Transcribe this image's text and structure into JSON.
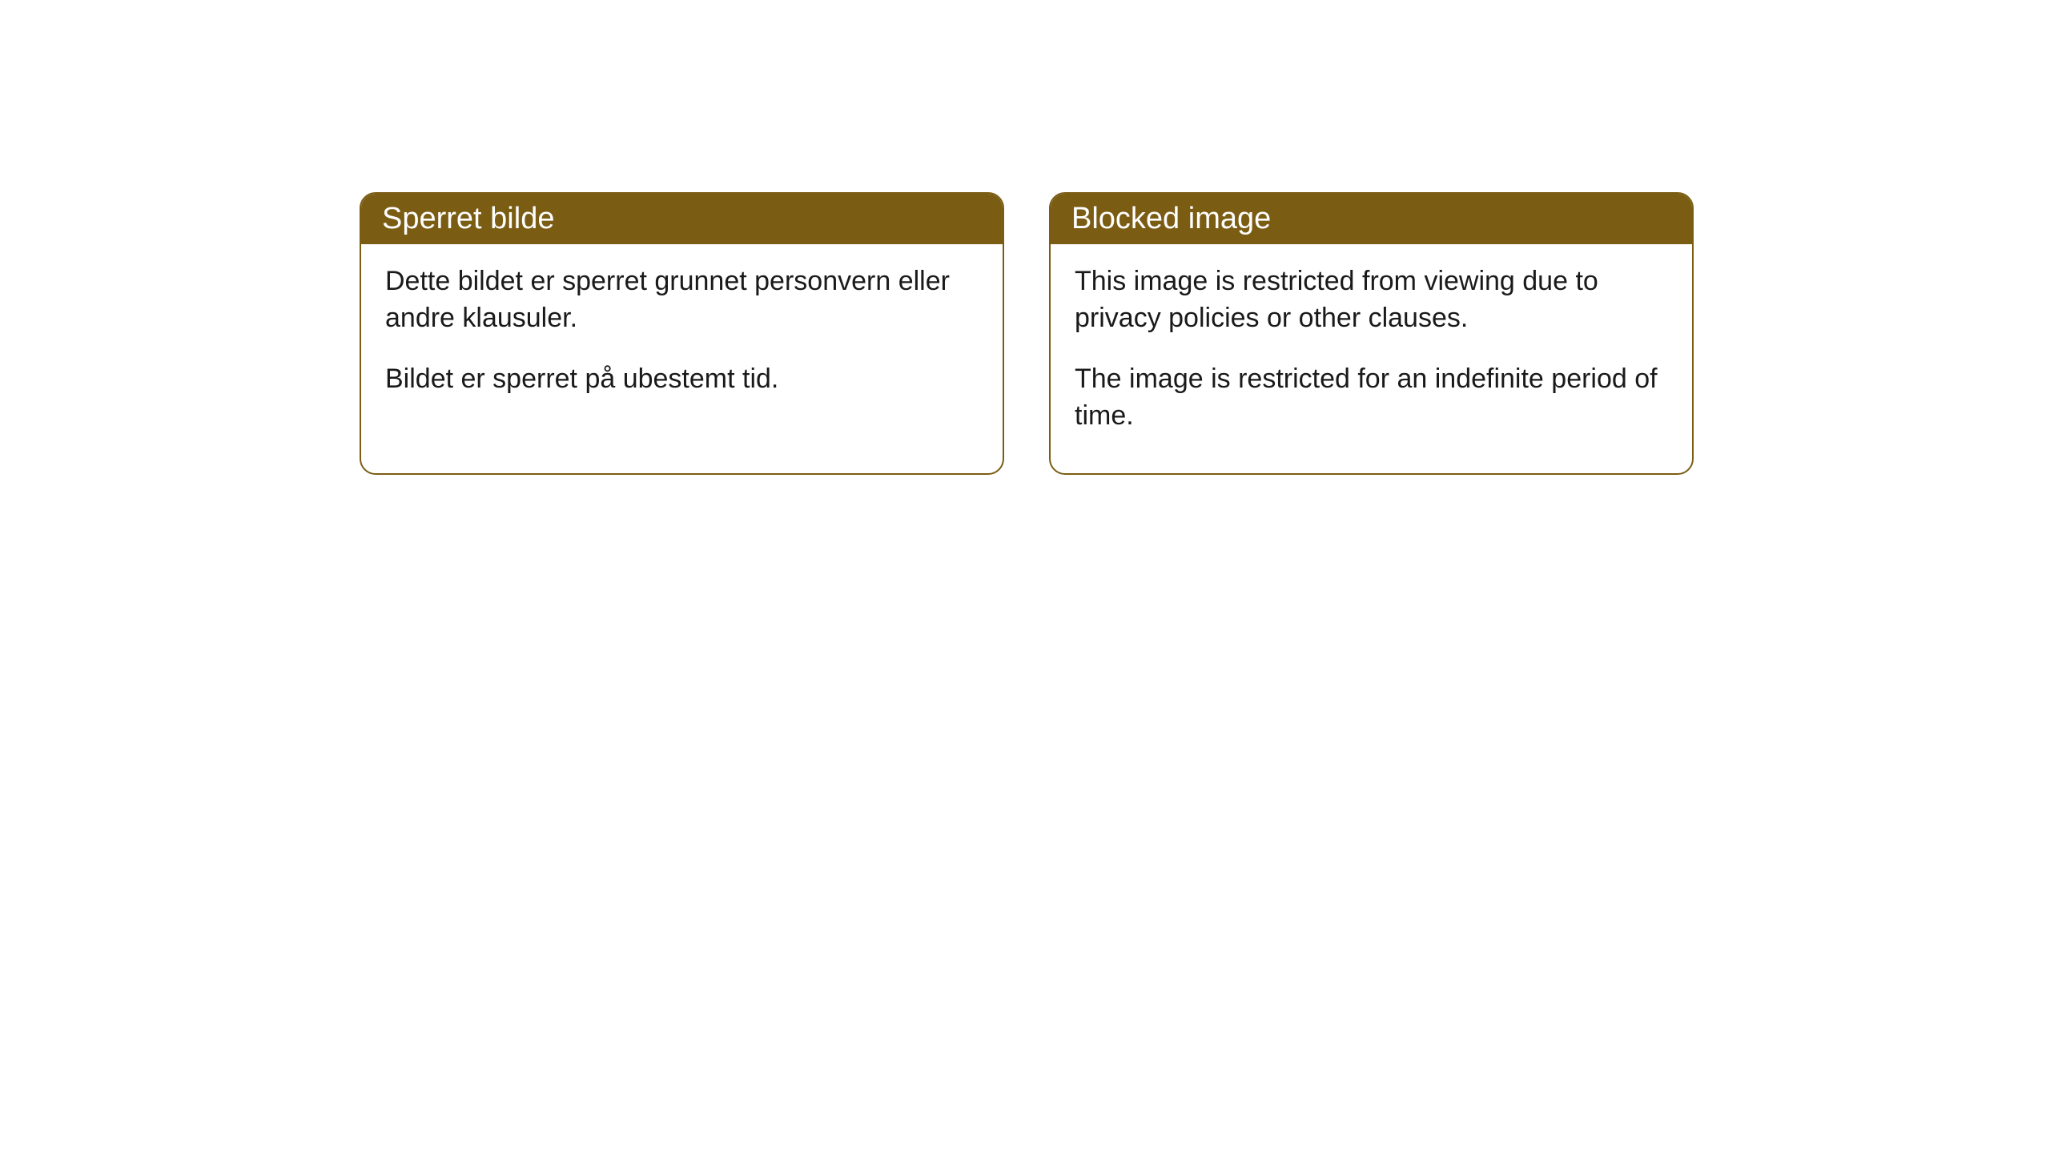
{
  "cards": [
    {
      "title": "Sperret bilde",
      "paragraph1": "Dette bildet er sperret grunnet personvern eller andre klausuler.",
      "paragraph2": "Bildet er sperret på ubestemt tid."
    },
    {
      "title": "Blocked image",
      "paragraph1": "This image is restricted from viewing due to privacy policies or other clauses.",
      "paragraph2": "The image is restricted for an indefinite period of time."
    }
  ],
  "styling": {
    "header_background": "#7a5c13",
    "header_text_color": "#ffffff",
    "card_border_color": "#7a5c13",
    "card_background": "#ffffff",
    "body_text_color": "#1a1a1a",
    "page_background": "#ffffff",
    "border_radius": 20,
    "header_fontsize": 38,
    "body_fontsize": 34
  }
}
